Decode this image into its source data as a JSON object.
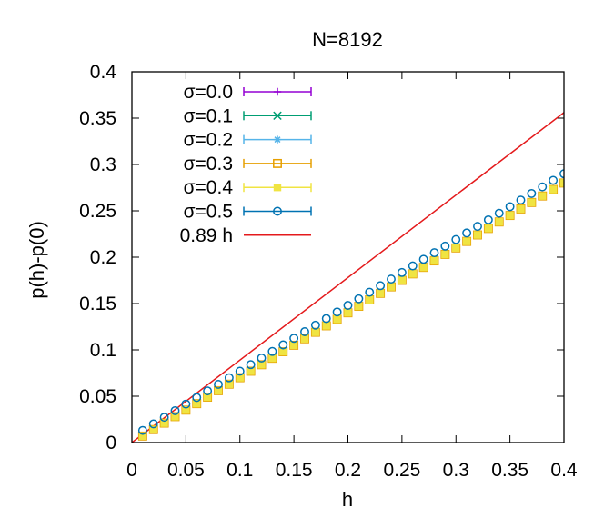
{
  "chart_data": {
    "type": "scatter",
    "title": "N=8192",
    "xlabel": "h",
    "ylabel": "p(h)-p(0)",
    "xlim": [
      0,
      0.4
    ],
    "ylim": [
      0,
      0.4
    ],
    "x_ticks": [
      "0",
      "0.05",
      "0.1",
      "0.15",
      "0.2",
      "0.25",
      "0.3",
      "0.35",
      "0.4"
    ],
    "y_ticks": [
      "0",
      "0.05",
      "0.1",
      "0.15",
      "0.2",
      "0.25",
      "0.3",
      "0.35",
      "0.4"
    ],
    "grid": false,
    "legend_position": "top-left",
    "series": [
      {
        "name": "σ=0.0",
        "color": "#9400d3",
        "marker": "plus",
        "x_start": 0.01,
        "x_step": 0.01,
        "count": 40,
        "slope": 0.7,
        "y0": 0.0
      },
      {
        "name": "σ=0.1",
        "color": "#009e73",
        "marker": "cross",
        "x_start": 0.01,
        "x_step": 0.01,
        "count": 40,
        "slope": 0.7,
        "y0": 0.0
      },
      {
        "name": "σ=0.2",
        "color": "#56b4e9",
        "marker": "star",
        "x_start": 0.01,
        "x_step": 0.01,
        "count": 40,
        "slope": 0.7,
        "y0": 0.0
      },
      {
        "name": "σ=0.3",
        "color": "#e69f00",
        "marker": "open-square",
        "x_start": 0.01,
        "x_step": 0.01,
        "count": 40,
        "slope": 0.7,
        "y0": 0.0
      },
      {
        "name": "σ=0.4",
        "color": "#f0e442",
        "marker": "filled-square",
        "x_start": 0.01,
        "x_step": 0.01,
        "count": 40,
        "slope": 0.7,
        "y0": 0.0
      },
      {
        "name": "σ=0.5",
        "color": "#0072b2",
        "marker": "open-circle",
        "x_start": 0.01,
        "x_step": 0.01,
        "count": 40,
        "slope": 0.71,
        "y0": 0.006
      }
    ],
    "fit_line": {
      "name": "0.89 h",
      "color": "#e41a1c",
      "slope": 0.89,
      "x_range": [
        0,
        0.4
      ]
    }
  }
}
